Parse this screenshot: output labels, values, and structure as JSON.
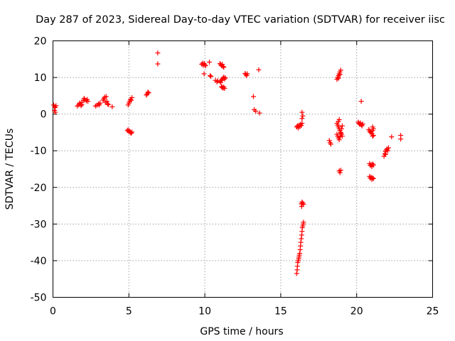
{
  "chart_data": {
    "type": "scatter",
    "title": "Day 287 of 2023, Sidereal Day-to-day VTEC variation (SDTVAR) for receiver iisc",
    "xlabel": "GPS time / hours",
    "ylabel": "SDTVAR / TECUs",
    "xlim": [
      0,
      25
    ],
    "ylim": [
      -50,
      20
    ],
    "xticks": [
      0,
      5,
      10,
      15,
      20,
      25
    ],
    "yticks": [
      -50,
      -40,
      -30,
      -20,
      -10,
      0,
      10,
      20
    ],
    "xtick_labels": [
      "0",
      "5",
      "10",
      "15",
      "20",
      "25"
    ],
    "ytick_labels": [
      "-50",
      "-40",
      "-30",
      "-20",
      "-10",
      "0",
      "10",
      "20"
    ],
    "grid": true,
    "marker": "+",
    "marker_color": "#ff0000",
    "series": [
      {
        "name": "iisc",
        "points": [
          [
            0.05,
            2.5
          ],
          [
            0.1,
            2.0
          ],
          [
            0.1,
            1.0
          ],
          [
            0.15,
            0.5
          ],
          [
            0.2,
            2.3
          ],
          [
            0.15,
            1.8
          ],
          [
            1.6,
            2.2
          ],
          [
            1.7,
            2.5
          ],
          [
            1.75,
            3.0
          ],
          [
            1.8,
            2.8
          ],
          [
            1.85,
            2.3
          ],
          [
            1.9,
            2.6
          ],
          [
            1.9,
            3.2
          ],
          [
            2.0,
            3.8
          ],
          [
            2.05,
            4.3
          ],
          [
            2.1,
            3.9
          ],
          [
            2.2,
            3.6
          ],
          [
            2.25,
            4.0
          ],
          [
            2.3,
            3.5
          ],
          [
            2.8,
            2.2
          ],
          [
            2.9,
            2.4
          ],
          [
            3.0,
            2.8
          ],
          [
            3.05,
            2.5
          ],
          [
            3.1,
            3.0
          ],
          [
            3.3,
            3.8
          ],
          [
            3.35,
            4.2
          ],
          [
            3.4,
            4.6
          ],
          [
            3.45,
            3.2
          ],
          [
            3.5,
            4.8
          ],
          [
            3.55,
            3.5
          ],
          [
            3.6,
            2.8
          ],
          [
            3.65,
            2.6
          ],
          [
            3.9,
            2.0
          ],
          [
            4.9,
            -4.5
          ],
          [
            4.95,
            -4.3
          ],
          [
            5.0,
            -4.8
          ],
          [
            5.05,
            -4.6
          ],
          [
            5.1,
            -5.0
          ],
          [
            5.15,
            -5.2
          ],
          [
            5.2,
            -4.9
          ],
          [
            4.95,
            2.5
          ],
          [
            5.0,
            3.0
          ],
          [
            5.05,
            3.5
          ],
          [
            5.1,
            4.0
          ],
          [
            5.15,
            3.8
          ],
          [
            5.2,
            4.5
          ],
          [
            6.15,
            5.2
          ],
          [
            6.2,
            5.5
          ],
          [
            6.25,
            6.0
          ],
          [
            6.3,
            5.8
          ],
          [
            6.9,
            16.7
          ],
          [
            6.9,
            13.7
          ],
          [
            9.8,
            13.6
          ],
          [
            9.85,
            13.9
          ],
          [
            9.9,
            13.3
          ],
          [
            9.95,
            13.8
          ],
          [
            10.0,
            13.5
          ],
          [
            10.05,
            13.2
          ],
          [
            9.95,
            11.0
          ],
          [
            10.3,
            14.2
          ],
          [
            10.35,
            10.5
          ],
          [
            10.4,
            10.3
          ],
          [
            10.7,
            9.2
          ],
          [
            10.8,
            8.8
          ],
          [
            10.85,
            9.1
          ],
          [
            11.0,
            13.8
          ],
          [
            11.05,
            13.5
          ],
          [
            11.1,
            13.2
          ],
          [
            11.15,
            13.6
          ],
          [
            11.2,
            13.0
          ],
          [
            11.25,
            12.8
          ],
          [
            11.0,
            9.0
          ],
          [
            11.05,
            8.6
          ],
          [
            11.1,
            9.2
          ],
          [
            11.15,
            9.5
          ],
          [
            11.2,
            9.8
          ],
          [
            11.25,
            10.1
          ],
          [
            11.3,
            9.6
          ],
          [
            11.35,
            9.9
          ],
          [
            11.1,
            7.5
          ],
          [
            11.15,
            7.3
          ],
          [
            11.2,
            7.1
          ],
          [
            11.25,
            7.4
          ],
          [
            11.3,
            7.0
          ],
          [
            12.65,
            11.1
          ],
          [
            12.7,
            10.8
          ],
          [
            12.75,
            10.5
          ],
          [
            12.8,
            11.0
          ],
          [
            13.2,
            4.8
          ],
          [
            13.25,
            1.2
          ],
          [
            13.35,
            0.8
          ],
          [
            13.55,
            12.1
          ],
          [
            13.6,
            0.3
          ],
          [
            16.05,
            -3.5
          ],
          [
            16.1,
            -3.2
          ],
          [
            16.15,
            -3.8
          ],
          [
            16.2,
            -3.0
          ],
          [
            16.25,
            -3.4
          ],
          [
            16.3,
            -2.8
          ],
          [
            16.35,
            -3.1
          ],
          [
            16.4,
            -2.5
          ],
          [
            16.4,
            0.5
          ],
          [
            16.45,
            -0.5
          ],
          [
            16.4,
            -1.2
          ],
          [
            16.05,
            -43.5
          ],
          [
            16.08,
            -42.5
          ],
          [
            16.1,
            -41.5
          ],
          [
            16.12,
            -40.5
          ],
          [
            16.15,
            -40.0
          ],
          [
            16.18,
            -39.5
          ],
          [
            16.2,
            -39.0
          ],
          [
            16.22,
            -38.5
          ],
          [
            16.25,
            -38.0
          ],
          [
            16.28,
            -37.0
          ],
          [
            16.3,
            -36.0
          ],
          [
            16.32,
            -35.0
          ],
          [
            16.35,
            -34.0
          ],
          [
            16.38,
            -33.0
          ],
          [
            16.4,
            -32.0
          ],
          [
            16.42,
            -31.0
          ],
          [
            16.45,
            -30.5
          ],
          [
            16.48,
            -30.0
          ],
          [
            16.5,
            -29.5
          ],
          [
            16.35,
            -24.5
          ],
          [
            16.4,
            -24.0
          ],
          [
            16.45,
            -24.3
          ],
          [
            16.5,
            -24.6
          ],
          [
            16.38,
            -25.2
          ],
          [
            18.2,
            -7.2
          ],
          [
            18.25,
            -7.8
          ],
          [
            18.3,
            -8.2
          ],
          [
            18.7,
            -2.5
          ],
          [
            18.75,
            -3.0
          ],
          [
            18.8,
            -3.5
          ],
          [
            18.85,
            -4.0
          ],
          [
            18.9,
            -4.5
          ],
          [
            18.95,
            -5.0
          ],
          [
            19.0,
            -5.5
          ],
          [
            19.05,
            -6.0
          ],
          [
            18.7,
            -5.5
          ],
          [
            18.75,
            -6.0
          ],
          [
            18.8,
            -6.5
          ],
          [
            18.85,
            -7.0
          ],
          [
            18.9,
            -6.2
          ],
          [
            18.95,
            -5.2
          ],
          [
            19.0,
            -4.0
          ],
          [
            19.05,
            -3.2
          ],
          [
            18.8,
            -2.0
          ],
          [
            18.85,
            -1.5
          ],
          [
            18.7,
            9.5
          ],
          [
            18.75,
            10.0
          ],
          [
            18.8,
            10.5
          ],
          [
            18.85,
            11.0
          ],
          [
            18.9,
            11.5
          ],
          [
            18.95,
            12.0
          ],
          [
            18.8,
            9.8
          ],
          [
            18.9,
            10.8
          ],
          [
            18.85,
            -15.5
          ],
          [
            18.9,
            -16.0
          ],
          [
            18.95,
            -15.3
          ],
          [
            20.1,
            -2.2
          ],
          [
            20.15,
            -2.5
          ],
          [
            20.2,
            -2.8
          ],
          [
            20.25,
            -2.4
          ],
          [
            20.3,
            -2.9
          ],
          [
            20.35,
            -3.2
          ],
          [
            20.4,
            -2.7
          ],
          [
            20.3,
            3.5
          ],
          [
            20.8,
            -4.2
          ],
          [
            20.85,
            -4.6
          ],
          [
            20.9,
            -5.0
          ],
          [
            20.95,
            -4.8
          ],
          [
            21.0,
            -5.3
          ],
          [
            21.05,
            -4.5
          ],
          [
            21.1,
            -4.0
          ],
          [
            21.05,
            -3.5
          ],
          [
            21.1,
            -5.8
          ],
          [
            21.05,
            -6.0
          ],
          [
            20.85,
            -13.5
          ],
          [
            20.9,
            -14.0
          ],
          [
            20.95,
            -13.8
          ],
          [
            21.0,
            -14.3
          ],
          [
            21.05,
            -13.6
          ],
          [
            21.1,
            -13.9
          ],
          [
            20.85,
            -17.0
          ],
          [
            20.9,
            -17.5
          ],
          [
            20.95,
            -17.2
          ],
          [
            21.0,
            -17.8
          ],
          [
            21.05,
            -17.4
          ],
          [
            21.1,
            -17.6
          ],
          [
            21.8,
            -11.5
          ],
          [
            21.85,
            -10.8
          ],
          [
            21.9,
            -10.2
          ],
          [
            21.95,
            -9.8
          ],
          [
            22.0,
            -9.5
          ],
          [
            22.05,
            -10.0
          ],
          [
            22.1,
            -9.2
          ],
          [
            21.9,
            -11.0
          ],
          [
            22.3,
            -6.2
          ],
          [
            22.9,
            -5.8
          ],
          [
            22.9,
            -6.8
          ]
        ]
      }
    ]
  }
}
